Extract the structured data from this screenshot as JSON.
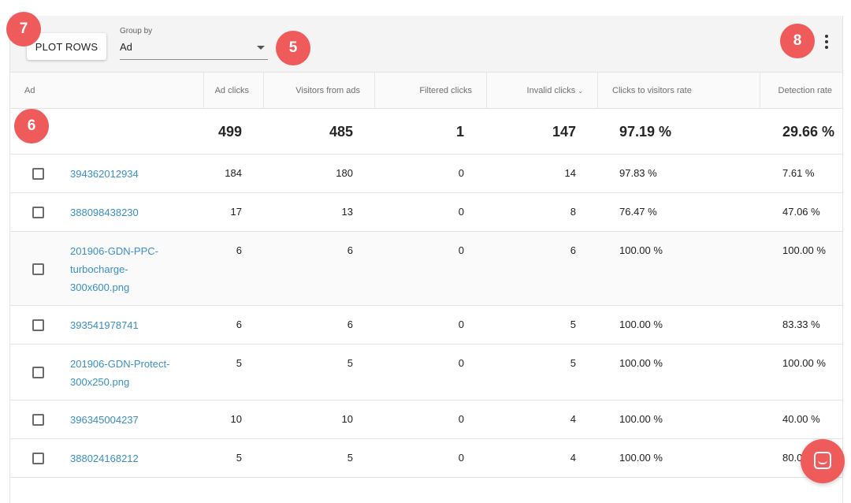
{
  "toolbar": {
    "plot_rows_label": "PLOT ROWS",
    "group_by_label": "Group by",
    "group_by_value": "Ad"
  },
  "icons": {
    "more": "more-vert-icon",
    "dropdown": "arrow-drop-down-icon",
    "checkbox": "checkbox-outline",
    "chat": "chat-icon"
  },
  "columns": [
    {
      "label": "Ad"
    },
    {
      "label": "Ad clicks"
    },
    {
      "label": "Visitors from ads"
    },
    {
      "label": "Filtered clicks"
    },
    {
      "label": "Invalid clicks",
      "sorted": "desc"
    },
    {
      "label": "Clicks to visitors rate"
    },
    {
      "label": "Detection rate"
    }
  ],
  "summary": {
    "ad_clicks": "499",
    "visitors": "485",
    "filtered": "1",
    "invalid": "147",
    "ctv_rate": "97.19 %",
    "detection": "29.66 %"
  },
  "rows": [
    {
      "ad": "394362012934",
      "ad_clicks": "184",
      "visitors": "180",
      "filtered": "0",
      "invalid": "14",
      "ctv_rate": "97.83 %",
      "detection": "7.61 %"
    },
    {
      "ad": "388098438230",
      "ad_clicks": "17",
      "visitors": "13",
      "filtered": "0",
      "invalid": "8",
      "ctv_rate": "76.47 %",
      "detection": "47.06 %"
    },
    {
      "ad_lines": [
        "201906-GDN-PPC-",
        "turbocharge-",
        "300x600.png"
      ],
      "ad_clicks": "6",
      "visitors": "6",
      "filtered": "0",
      "invalid": "6",
      "ctv_rate": "100.00 %",
      "detection": "100.00 %"
    },
    {
      "ad": "393541978741",
      "ad_clicks": "6",
      "visitors": "6",
      "filtered": "0",
      "invalid": "5",
      "ctv_rate": "100.00 %",
      "detection": "83.33 %"
    },
    {
      "ad_lines": [
        "201906-GDN-Protect-",
        "300x250.png"
      ],
      "ad_clicks": "5",
      "visitors": "5",
      "filtered": "0",
      "invalid": "5",
      "ctv_rate": "100.00 %",
      "detection": "100.00 %"
    },
    {
      "ad": "396345004237",
      "ad_clicks": "10",
      "visitors": "10",
      "filtered": "0",
      "invalid": "4",
      "ctv_rate": "100.00 %",
      "detection": "40.00 %"
    },
    {
      "ad": "388024168212",
      "ad_clicks": "5",
      "visitors": "5",
      "filtered": "0",
      "invalid": "4",
      "ctv_rate": "100.00 %",
      "detection": "80.0"
    }
  ],
  "badges": [
    "7",
    "5",
    "8",
    "6"
  ],
  "colors": {
    "link": "#3a8fc7",
    "badge": "#ef5b5b",
    "toolbar_bg": "#f4f4f4"
  }
}
